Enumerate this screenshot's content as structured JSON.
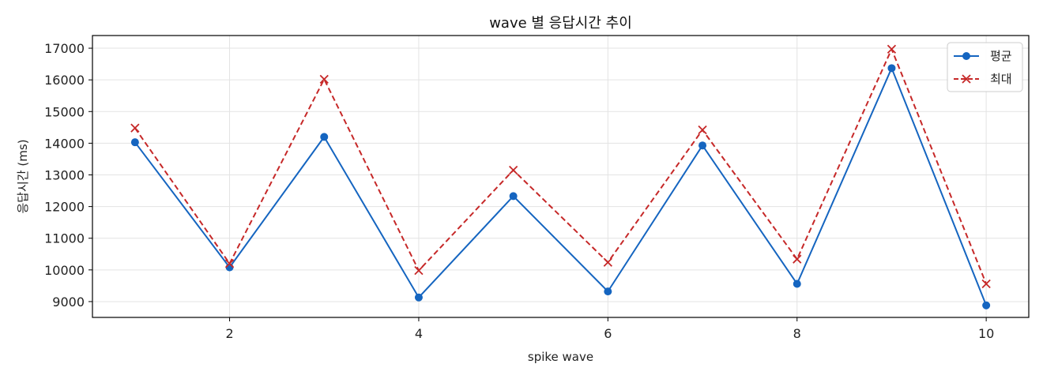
{
  "chart_data": {
    "type": "line",
    "title": "wave 별 응답시간 추이",
    "xlabel": "spike wave",
    "ylabel": "응답시간 (ms)",
    "x": [
      1,
      2,
      3,
      4,
      5,
      6,
      7,
      8,
      9,
      10
    ],
    "xlim": [
      0.55,
      10.45
    ],
    "ylim": [
      8500,
      17400
    ],
    "xticks": [
      2,
      4,
      6,
      8,
      10
    ],
    "yticks": [
      9000,
      10000,
      11000,
      12000,
      13000,
      14000,
      15000,
      16000,
      17000
    ],
    "grid": true,
    "legend_position": "top-right",
    "series": [
      {
        "name": "평균",
        "color": "#1565c0",
        "line_style": "solid",
        "marker": "circle",
        "values": [
          14030,
          10080,
          14200,
          9130,
          12330,
          9320,
          13930,
          9560,
          16370,
          8880
        ]
      },
      {
        "name": "최대",
        "color": "#c62828",
        "line_style": "dashed",
        "marker": "x",
        "values": [
          14480,
          10200,
          16020,
          9980,
          13150,
          10240,
          14420,
          10340,
          16970,
          9560
        ]
      }
    ]
  }
}
